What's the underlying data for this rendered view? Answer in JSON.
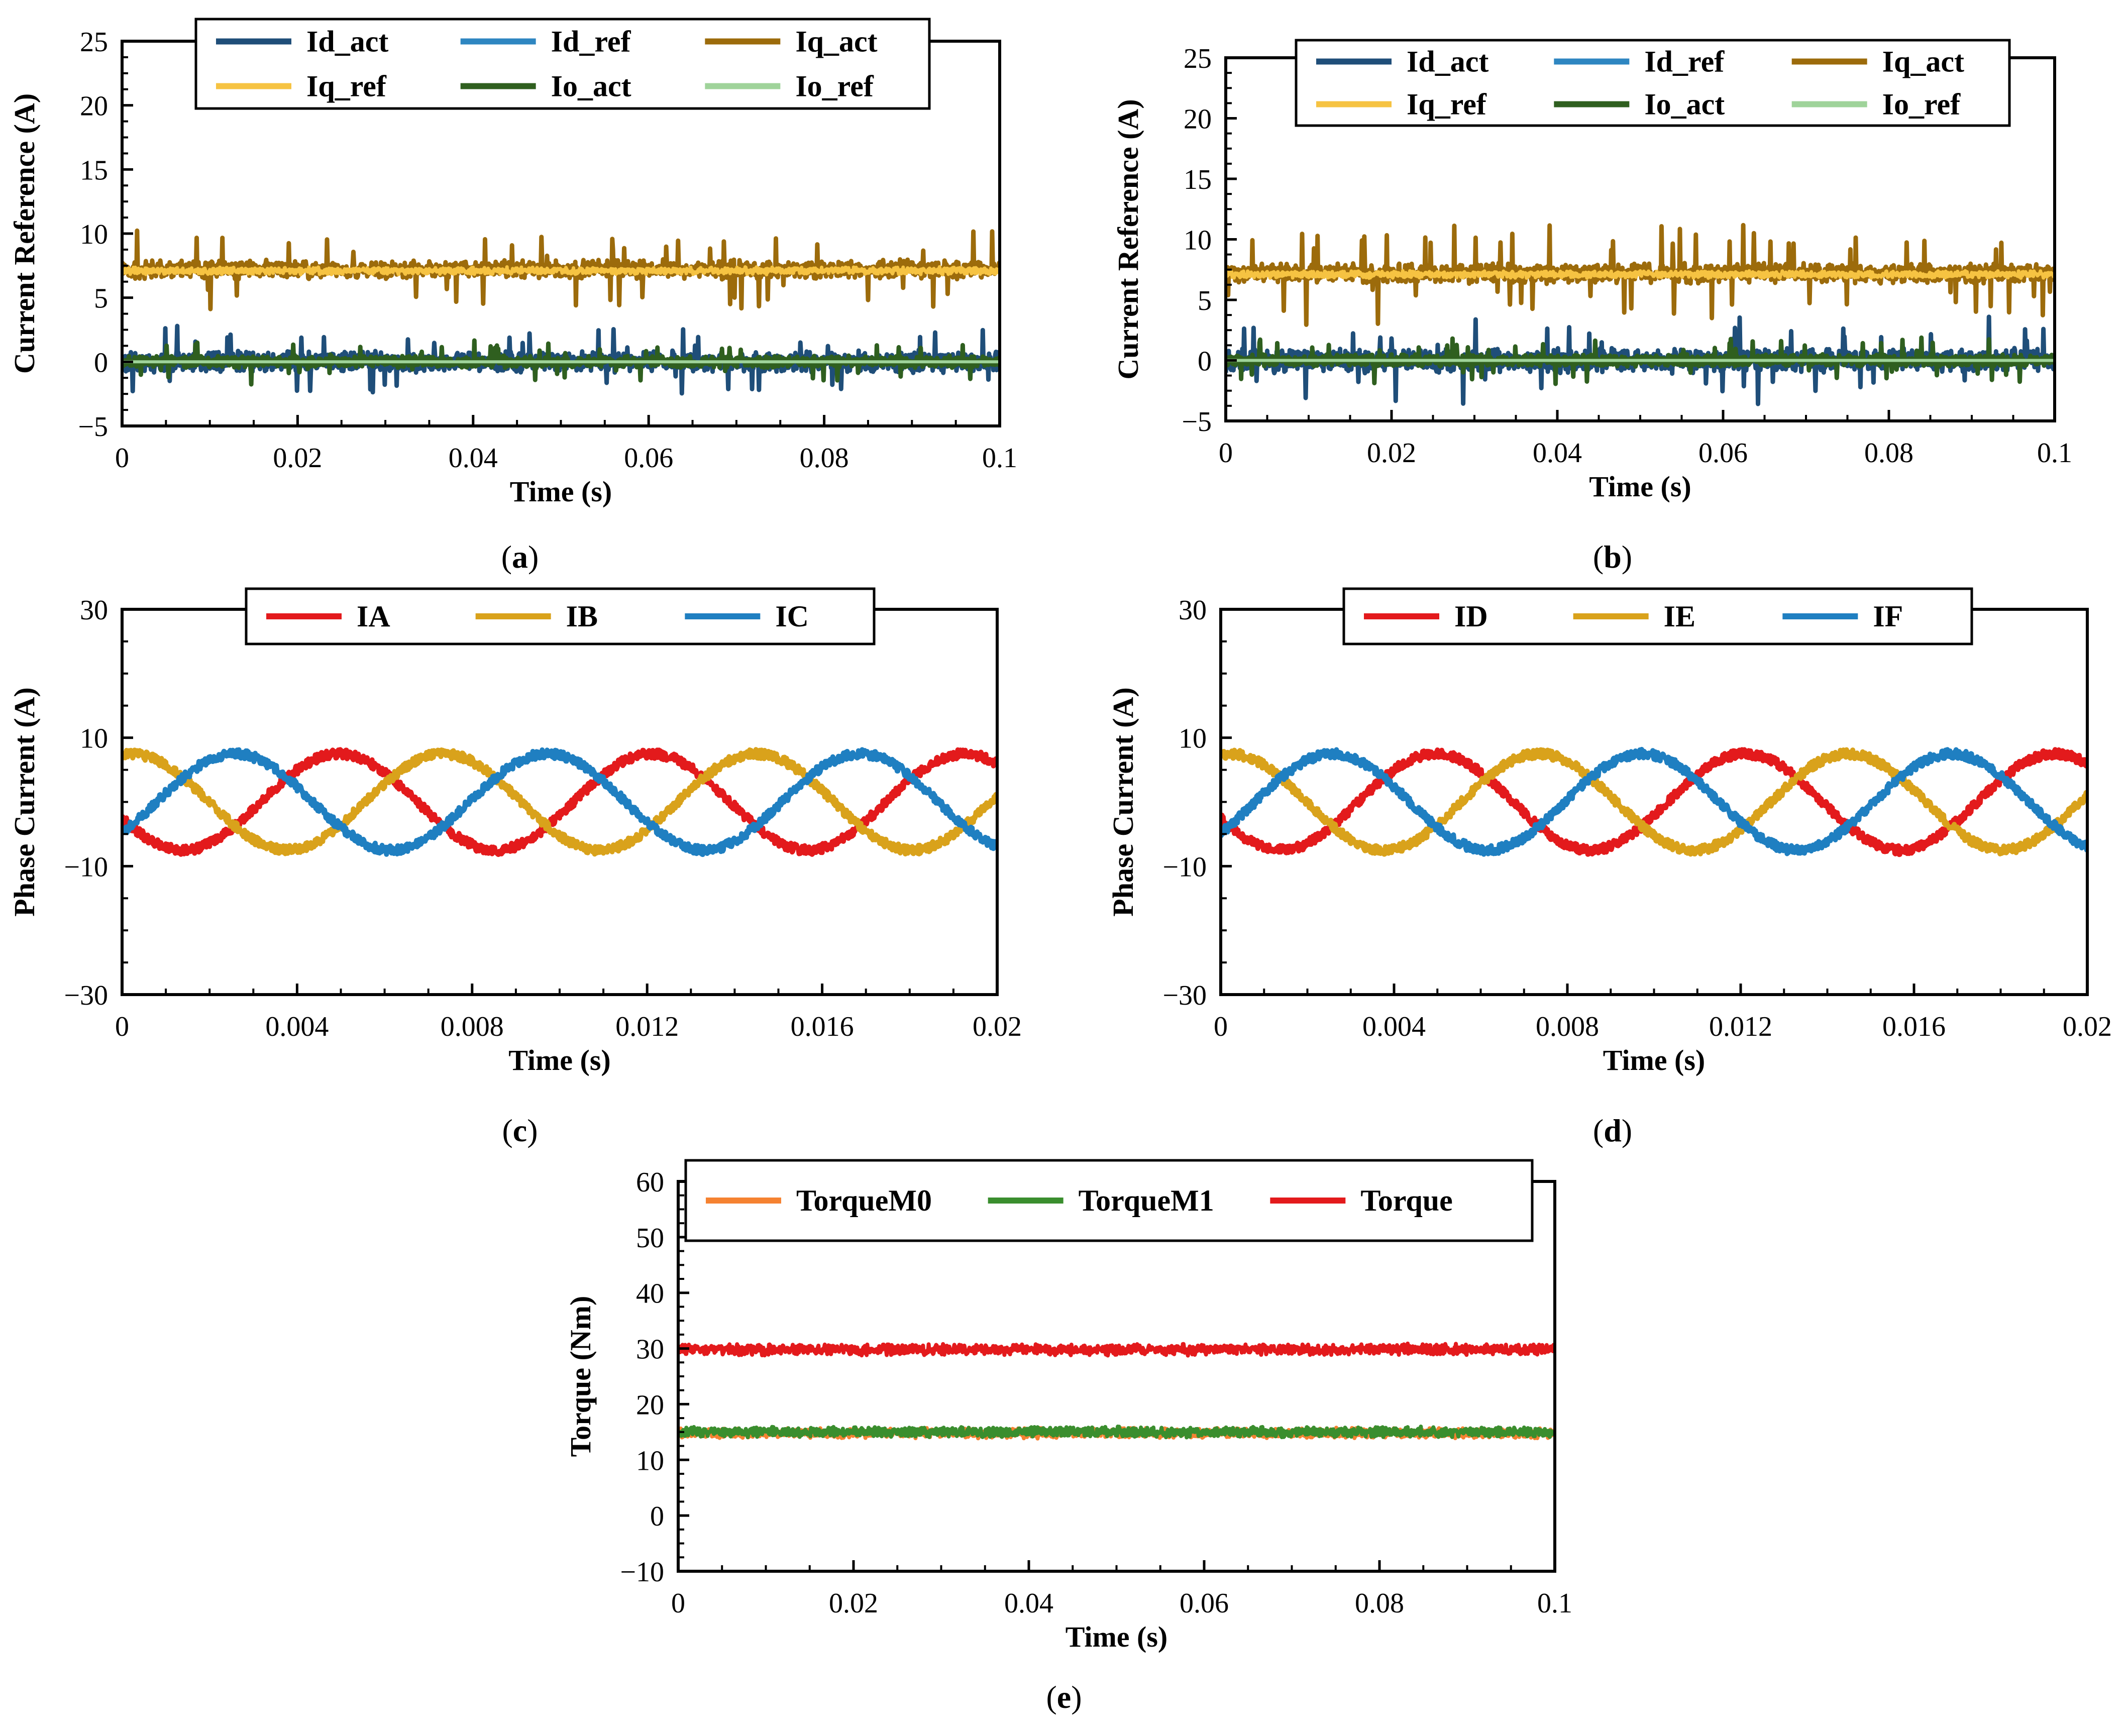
{
  "chart_data": [
    {
      "id": "a",
      "type": "line",
      "panel_label": "(a)",
      "xlabel": "Time (s)",
      "ylabel": "Current Reference (A)",
      "xlim": [
        0,
        0.1
      ],
      "ylim": [
        -5,
        25
      ],
      "xticks": [
        0,
        0.02,
        0.04,
        0.06,
        0.08,
        0.1
      ],
      "xtick_labels": [
        "0",
        "0.02",
        "0.04",
        "0.06",
        "0.08",
        "0.1"
      ],
      "yticks": [
        -5,
        0,
        5,
        10,
        15,
        20,
        25
      ],
      "ytick_labels": [
        "−5",
        "0",
        "5",
        "10",
        "15",
        "20",
        "25"
      ],
      "grid": false,
      "legend_position": "top-center",
      "legend_columns": 3,
      "series": [
        {
          "name": "Id_act",
          "color": "#1f4e79",
          "mean": 0.0,
          "noise": 1.0,
          "spike": 2.5,
          "width": 9
        },
        {
          "name": "Id_ref",
          "color": "#2e86c1",
          "mean": 0.0,
          "noise": 0.0,
          "spike": 0,
          "width": 6
        },
        {
          "name": "Iq_act",
          "color": "#9c6b0b",
          "mean": 7.2,
          "noise": 0.9,
          "spike": 3.0,
          "width": 9
        },
        {
          "name": "Iq_ref",
          "color": "#f6c342",
          "mean": 7.1,
          "noise": 0.35,
          "spike": 0,
          "width": 7
        },
        {
          "name": "Io_act",
          "color": "#2f5f1f",
          "mean": 0.0,
          "noise": 0.55,
          "spike": 1.5,
          "width": 9
        },
        {
          "name": "Io_ref",
          "color": "#9fd39a",
          "mean": 0.0,
          "noise": 0.0,
          "spike": 0,
          "width": 6
        }
      ]
    },
    {
      "id": "b",
      "type": "line",
      "panel_label": "(b)",
      "xlabel": "Time (s)",
      "ylabel": "Current Reference (A)",
      "xlim": [
        0,
        0.1
      ],
      "ylim": [
        -5,
        25
      ],
      "xticks": [
        0,
        0.02,
        0.04,
        0.06,
        0.08,
        0.1
      ],
      "xtick_labels": [
        "0",
        "0.02",
        "0.04",
        "0.06",
        "0.08",
        "0.1"
      ],
      "yticks": [
        -5,
        0,
        5,
        10,
        15,
        20,
        25
      ],
      "ytick_labels": [
        "−5",
        "0",
        "5",
        "10",
        "15",
        "20",
        "25"
      ],
      "grid": false,
      "legend_position": "top-right",
      "legend_columns": 3,
      "series": [
        {
          "name": "Id_act",
          "color": "#1f4e79",
          "mean": 0.0,
          "noise": 1.2,
          "spike": 3.2,
          "width": 9
        },
        {
          "name": "Id_ref",
          "color": "#2e86c1",
          "mean": 0.0,
          "noise": 0.0,
          "spike": 0,
          "width": 6
        },
        {
          "name": "Iq_act",
          "color": "#9c6b0b",
          "mean": 7.2,
          "noise": 1.0,
          "spike": 3.8,
          "width": 9
        },
        {
          "name": "Iq_ref",
          "color": "#f6c342",
          "mean": 7.1,
          "noise": 0.35,
          "spike": 0,
          "width": 7
        },
        {
          "name": "Io_act",
          "color": "#2f5f1f",
          "mean": 0.0,
          "noise": 0.6,
          "spike": 1.8,
          "width": 9
        },
        {
          "name": "Io_ref",
          "color": "#9fd39a",
          "mean": 0.0,
          "noise": 0.0,
          "spike": 0,
          "width": 6
        }
      ]
    },
    {
      "id": "c",
      "type": "line",
      "panel_label": "(c)",
      "xlabel": "Time (s)",
      "ylabel": "Phase Current (A)",
      "xlim": [
        0,
        0.02
      ],
      "ylim": [
        -30,
        30
      ],
      "xticks": [
        0,
        0.004,
        0.008,
        0.012,
        0.016,
        0.02
      ],
      "xtick_labels": [
        "0",
        "0.004",
        "0.008",
        "0.012",
        "0.016",
        "0.02"
      ],
      "yticks": [
        -30,
        -10,
        10,
        30
      ],
      "ytick_labels": [
        "−30",
        "−10",
        "10",
        "30"
      ],
      "grid": false,
      "legend_position": "top-center",
      "legend_columns": 3,
      "waveform": {
        "amplitude": 7.5,
        "frequency_hz": 140,
        "noise": 0.7
      },
      "series": [
        {
          "name": "IA",
          "color": "#e31a1c",
          "phase_deg": 200,
          "width": 10
        },
        {
          "name": "IB",
          "color": "#d9a21b",
          "phase_deg": 80,
          "width": 10
        },
        {
          "name": "IC",
          "color": "#1f7fc1",
          "phase_deg": 320,
          "width": 10
        }
      ]
    },
    {
      "id": "d",
      "type": "line",
      "panel_label": "(d)",
      "xlabel": "Time (s)",
      "ylabel": "Phase Current (A)",
      "xlim": [
        0,
        0.02
      ],
      "ylim": [
        -30,
        30
      ],
      "xticks": [
        0,
        0.004,
        0.008,
        0.012,
        0.016,
        0.02
      ],
      "xtick_labels": [
        "0",
        "0.004",
        "0.008",
        "0.012",
        "0.016",
        "0.02"
      ],
      "yticks": [
        -30,
        -10,
        10,
        30
      ],
      "ytick_labels": [
        "−30",
        "−10",
        "10",
        "30"
      ],
      "grid": false,
      "legend_position": "top-center",
      "legend_columns": 3,
      "waveform": {
        "amplitude": 7.5,
        "frequency_hz": 140,
        "noise": 0.7
      },
      "series": [
        {
          "name": "ID",
          "color": "#e31a1c",
          "phase_deg": 200,
          "width": 10
        },
        {
          "name": "IE",
          "color": "#d9a21b",
          "phase_deg": 80,
          "width": 10
        },
        {
          "name": "IF",
          "color": "#1f7fc1",
          "phase_deg": 320,
          "width": 10
        }
      ]
    },
    {
      "id": "e",
      "type": "line",
      "panel_label": "(e)",
      "xlabel": "Time (s)",
      "ylabel": "Torque (Nm)",
      "xlim": [
        0,
        0.1
      ],
      "ylim": [
        -10,
        60
      ],
      "xticks": [
        0,
        0.02,
        0.04,
        0.06,
        0.08,
        0.1
      ],
      "xtick_labels": [
        "0",
        "0.02",
        "0.04",
        "0.06",
        "0.08",
        "0.1"
      ],
      "yticks": [
        -10,
        0,
        10,
        20,
        30,
        40,
        50,
        60
      ],
      "ytick_labels": [
        "−10",
        "0",
        "10",
        "20",
        "30",
        "40",
        "50",
        "60"
      ],
      "grid": false,
      "legend_position": "top-center",
      "legend_columns": 3,
      "series": [
        {
          "name": "TorqueM0",
          "color": "#f58231",
          "mean": 14.8,
          "noise": 1.1,
          "spike": 0,
          "width": 8
        },
        {
          "name": "TorqueM1",
          "color": "#3a8e2e",
          "mean": 15.0,
          "noise": 1.1,
          "spike": 0,
          "width": 8
        },
        {
          "name": "Torque",
          "color": "#e31a1c",
          "mean": 29.8,
          "noise": 1.2,
          "spike": 0,
          "width": 8
        }
      ]
    }
  ]
}
